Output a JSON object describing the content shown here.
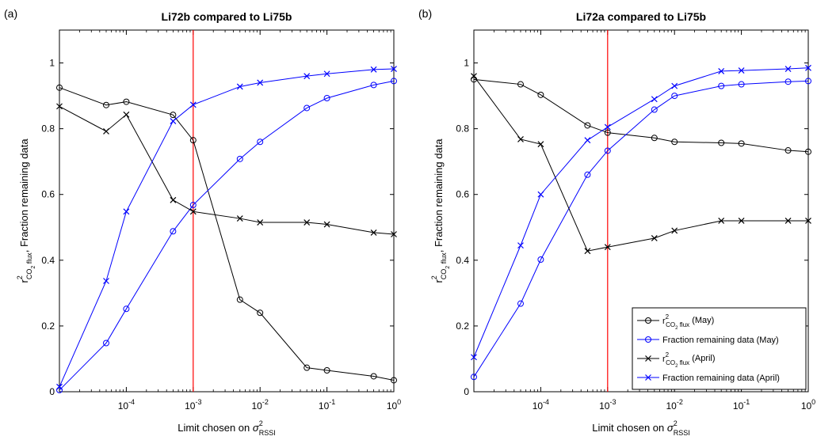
{
  "chart_data": [
    {
      "type": "line",
      "panel_label": "(a)",
      "title": "Li72b compared to Li75b",
      "xlabel": "Limit chosen on σ²_RSSI",
      "ylabel": "r²_CO2 flux, Fraction remaining data",
      "xscale": "log",
      "xlim": [
        1e-05,
        1
      ],
      "ylim": [
        0,
        1.1
      ],
      "xticks": [
        0.0001,
        0.001,
        0.01,
        0.1,
        1
      ],
      "xtick_labels": [
        [
          "10",
          "-4"
        ],
        [
          "10",
          "-3"
        ],
        [
          "10",
          "-2"
        ],
        [
          "10",
          "-1"
        ],
        [
          "10",
          "0"
        ]
      ],
      "yticks": [
        0,
        0.2,
        0.4,
        0.6,
        0.8,
        1
      ],
      "ytick_labels": [
        "0",
        "0.2",
        "0.4",
        "0.6",
        "0.8",
        "1"
      ],
      "vline_x": 0.001,
      "grid": false,
      "legend": false,
      "x": [
        1e-05,
        5e-05,
        0.0001,
        0.0005,
        0.001,
        0.005,
        0.01,
        0.05,
        0.1,
        0.5,
        1
      ],
      "series": [
        {
          "label": "r²_CO2 flux (May)",
          "color": "#000000",
          "marker": "o",
          "values": [
            0.925,
            0.872,
            0.882,
            0.842,
            0.765,
            0.28,
            0.24,
            0.073,
            0.065,
            0.047,
            0.035
          ]
        },
        {
          "label": "Fraction remaining data (May)",
          "color": "#0000ff",
          "marker": "o",
          "values": [
            0.005,
            0.148,
            0.252,
            0.488,
            0.568,
            0.708,
            0.76,
            0.863,
            0.893,
            0.933,
            0.945
          ]
        },
        {
          "label": "r²_CO2 flux (April)",
          "color": "#000000",
          "marker": "x",
          "values": [
            0.868,
            0.792,
            0.843,
            0.583,
            0.548,
            0.527,
            0.515,
            0.515,
            0.509,
            0.484,
            0.479
          ]
        },
        {
          "label": "Fraction remaining data (April)",
          "color": "#0000ff",
          "marker": "x",
          "values": [
            0.015,
            0.337,
            0.548,
            0.823,
            0.873,
            0.928,
            0.94,
            0.96,
            0.967,
            0.98,
            0.982
          ]
        }
      ]
    },
    {
      "type": "line",
      "panel_label": "(b)",
      "title": "Li72a compared to Li75b",
      "xlabel": "Limit chosen on σ²_RSSI",
      "ylabel": "r²_CO2 flux, Fraction remaining data",
      "xscale": "log",
      "xlim": [
        1e-05,
        1
      ],
      "ylim": [
        0,
        1.1
      ],
      "xticks": [
        0.0001,
        0.001,
        0.01,
        0.1,
        1
      ],
      "xtick_labels": [
        [
          "10",
          "-4"
        ],
        [
          "10",
          "-3"
        ],
        [
          "10",
          "-2"
        ],
        [
          "10",
          "-1"
        ],
        [
          "10",
          "0"
        ]
      ],
      "yticks": [
        0,
        0.2,
        0.4,
        0.6,
        0.8,
        1
      ],
      "ytick_labels": [
        "0",
        "0.2",
        "0.4",
        "0.6",
        "0.8",
        "1"
      ],
      "vline_x": 0.001,
      "grid": false,
      "legend": "bottom-right",
      "x": [
        1e-05,
        5e-05,
        0.0001,
        0.0005,
        0.001,
        0.005,
        0.01,
        0.05,
        0.1,
        0.5,
        1
      ],
      "series": [
        {
          "label": "r²_CO2 flux (May)",
          "color": "#000000",
          "marker": "o",
          "values": [
            0.95,
            0.935,
            0.903,
            0.81,
            0.788,
            0.772,
            0.76,
            0.757,
            0.755,
            0.734,
            0.73
          ]
        },
        {
          "label": "Fraction remaining data (May)",
          "color": "#0000ff",
          "marker": "o",
          "values": [
            0.045,
            0.268,
            0.402,
            0.66,
            0.733,
            0.858,
            0.9,
            0.93,
            0.935,
            0.943,
            0.945
          ]
        },
        {
          "label": "r²_CO2 flux (April)",
          "color": "#000000",
          "marker": "x",
          "values": [
            0.96,
            0.768,
            0.753,
            0.428,
            0.44,
            0.467,
            0.49,
            0.52,
            0.52,
            0.52,
            0.52
          ]
        },
        {
          "label": "Fraction remaining data (April)",
          "color": "#0000ff",
          "marker": "x",
          "values": [
            0.105,
            0.445,
            0.6,
            0.765,
            0.805,
            0.89,
            0.93,
            0.975,
            0.977,
            0.982,
            0.985
          ]
        }
      ]
    }
  ],
  "legend_entries": [
    {
      "kind": "r2",
      "main": "r",
      "sup": "2",
      "sub1": "CO",
      "sub2": "2",
      "sub3": " flux",
      "suffix": " (May)",
      "color": "#000000",
      "marker": "o"
    },
    {
      "kind": "text",
      "text": "Fraction remaining data (May)",
      "color": "#0000ff",
      "marker": "o"
    },
    {
      "kind": "r2",
      "main": "r",
      "sup": "2",
      "sub1": "CO",
      "sub2": "2",
      "sub3": " flux",
      "suffix": " (April)",
      "color": "#000000",
      "marker": "x"
    },
    {
      "kind": "text",
      "text": "Fraction remaining data (April)",
      "color": "#0000ff",
      "marker": "x"
    }
  ],
  "xlabel_parts": {
    "text": "Limit chosen on ",
    "sym": "σ",
    "sup": "2",
    "sub": "RSSI"
  },
  "ylabel_parts": {
    "main": "r",
    "sup": "2",
    "sub1": "CO",
    "sub2": "2",
    "sub3": " flux",
    "rest": ", Fraction remaining data"
  },
  "vline_color": "#ff0000"
}
